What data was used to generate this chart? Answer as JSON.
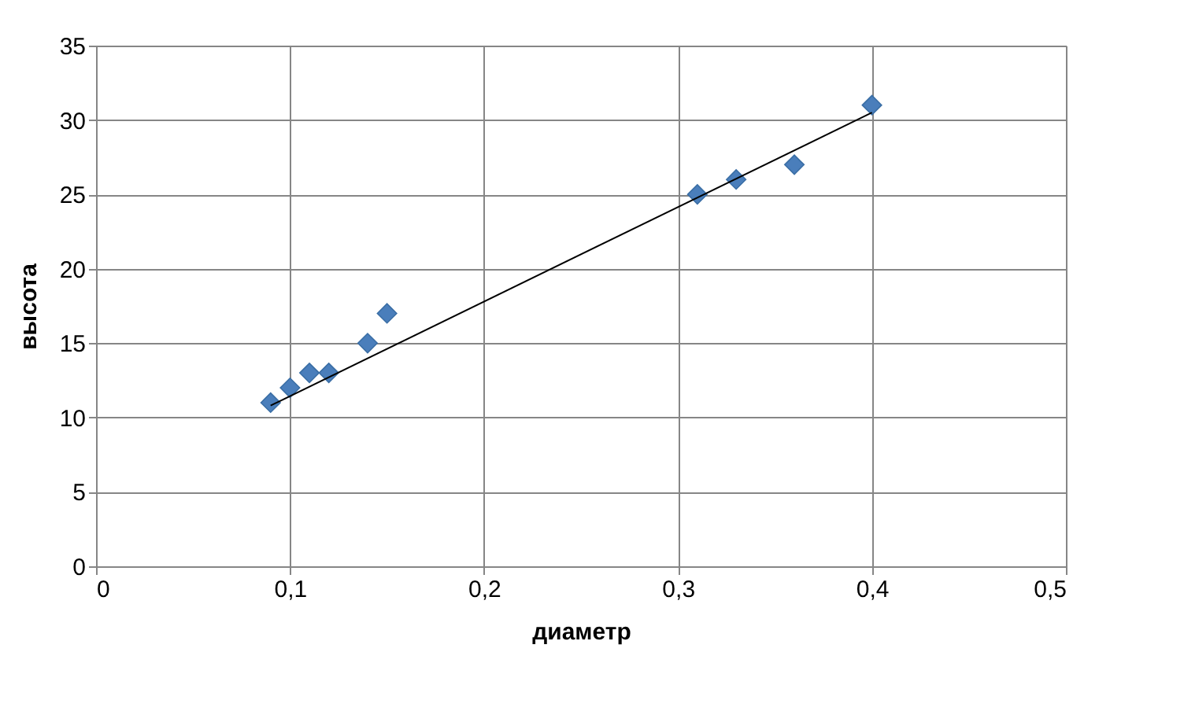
{
  "chart_data": {
    "type": "scatter",
    "xlabel": "диаметр",
    "ylabel": "высота",
    "xlim": [
      0,
      0.5
    ],
    "xticks": [
      {
        "value": 0,
        "label": "0"
      },
      {
        "value": 0.1,
        "label": "0,1"
      },
      {
        "value": 0.2,
        "label": "0,2"
      },
      {
        "value": 0.3,
        "label": "0,3"
      },
      {
        "value": 0.4,
        "label": "0,4"
      },
      {
        "value": 0.5,
        "label": "0,5"
      }
    ],
    "ylim": [
      0,
      35
    ],
    "yticks": [
      0,
      5,
      10,
      15,
      20,
      25,
      30,
      35
    ],
    "grid": true,
    "marker": "diamond",
    "series": [
      {
        "color": "#4a7ebb",
        "x": [
          0.09,
          0.1,
          0.11,
          0.12,
          0.14,
          0.15,
          0.31,
          0.33,
          0.36,
          0.4
        ],
        "values": [
          11,
          12,
          13,
          13,
          15,
          17,
          25,
          26,
          27,
          31
        ]
      },
      {
        "type": "line",
        "color": "#000000",
        "marker": "none",
        "x": [
          0.09,
          0.4
        ],
        "values": [
          10.8,
          30.5
        ]
      }
    ]
  }
}
